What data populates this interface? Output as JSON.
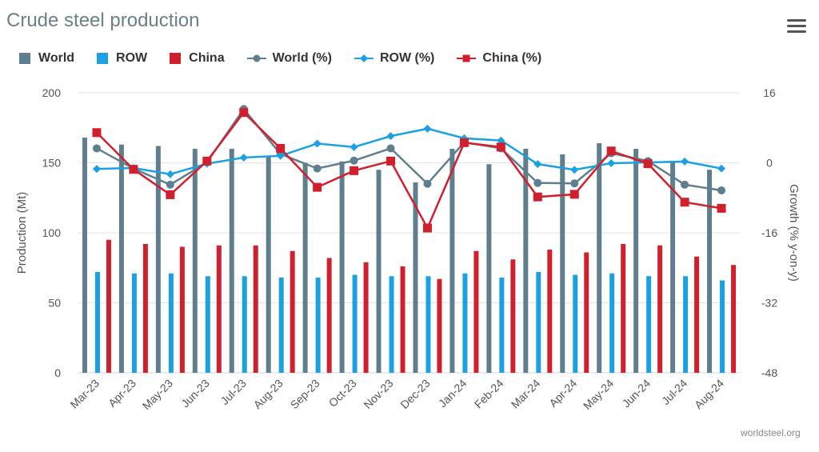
{
  "title": "Crude steel production",
  "credit": "worldsteel.org",
  "menu_icon": "hamburger-menu-icon",
  "legend": [
    {
      "label": "World",
      "kind": "bar",
      "color": "#5f7f8e"
    },
    {
      "label": "ROW",
      "kind": "bar",
      "color": "#1ba1e2"
    },
    {
      "label": "China",
      "kind": "bar",
      "color": "#d0202e"
    },
    {
      "label": "World (%)",
      "kind": "line",
      "marker": "circle",
      "color": "#5f7f8e"
    },
    {
      "label": "ROW (%)",
      "kind": "line",
      "marker": "diamond",
      "color": "#1ba1e2"
    },
    {
      "label": "China (%)",
      "kind": "line",
      "marker": "square",
      "color": "#d0202e"
    }
  ],
  "chart_data": {
    "type": "bar",
    "categories": [
      "Mar-23",
      "Apr-23",
      "May-23",
      "Jun-23",
      "Jul-23",
      "Aug-23",
      "Sep-23",
      "Oct-23",
      "Nov-23",
      "Dec-23",
      "Jan-24",
      "Feb-24",
      "Mar-24",
      "Apr-24",
      "May-24",
      "Jun-24",
      "Jul-24",
      "Aug-24"
    ],
    "ylabel": "Production (Mt)",
    "ylabel_right": "Growth (% y-on-y)",
    "ylim": [
      0,
      200
    ],
    "yticks": [
      0,
      50,
      100,
      150,
      200
    ],
    "ylim_right": [
      -48,
      16
    ],
    "yticks_right": [
      -48,
      -32,
      -16,
      0,
      16
    ],
    "grid": true,
    "legend_position": "top-left",
    "bar_series": [
      {
        "name": "World",
        "color": "#5f7f8e",
        "values": [
          168,
          163,
          162,
          160,
          160,
          155,
          150,
          151,
          145,
          136,
          160,
          149,
          160,
          156,
          164,
          160,
          151,
          145
        ]
      },
      {
        "name": "ROW",
        "color": "#1ba1e2",
        "values": [
          72,
          71,
          71,
          69,
          69,
          68,
          68,
          70,
          69,
          69,
          71,
          68,
          72,
          70,
          71,
          69,
          69,
          66
        ]
      },
      {
        "name": "China",
        "color": "#d0202e",
        "values": [
          95,
          92,
          90,
          91,
          91,
          87,
          82,
          79,
          76,
          67,
          87,
          81,
          88,
          86,
          92,
          91,
          83,
          77
        ]
      }
    ],
    "line_series": [
      {
        "name": "World (%)",
        "color": "#5f7f8e",
        "marker": "circle",
        "values": [
          3.3,
          -1.3,
          -5.0,
          0.1,
          12.3,
          2.0,
          -1.3,
          0.5,
          3.3,
          -4.8,
          4.7,
          3.3,
          -4.6,
          -4.7,
          2.2,
          0.4,
          -5.0,
          -6.3
        ]
      },
      {
        "name": "ROW (%)",
        "color": "#1ba1e2",
        "marker": "diamond",
        "values": [
          -1.4,
          -1.2,
          -2.6,
          -0.2,
          1.2,
          1.6,
          4.4,
          3.6,
          6.1,
          7.8,
          5.6,
          5.1,
          -0.3,
          -1.6,
          -0.1,
          0.1,
          0.3,
          -1.3
        ]
      },
      {
        "name": "China (%)",
        "color": "#d0202e",
        "marker": "square",
        "values": [
          6.9,
          -1.5,
          -7.3,
          0.4,
          11.5,
          3.3,
          -5.6,
          -1.8,
          0.4,
          -14.9,
          4.6,
          3.6,
          -7.8,
          -7.2,
          2.7,
          -0.2,
          -9.0,
          -10.4
        ]
      }
    ]
  }
}
